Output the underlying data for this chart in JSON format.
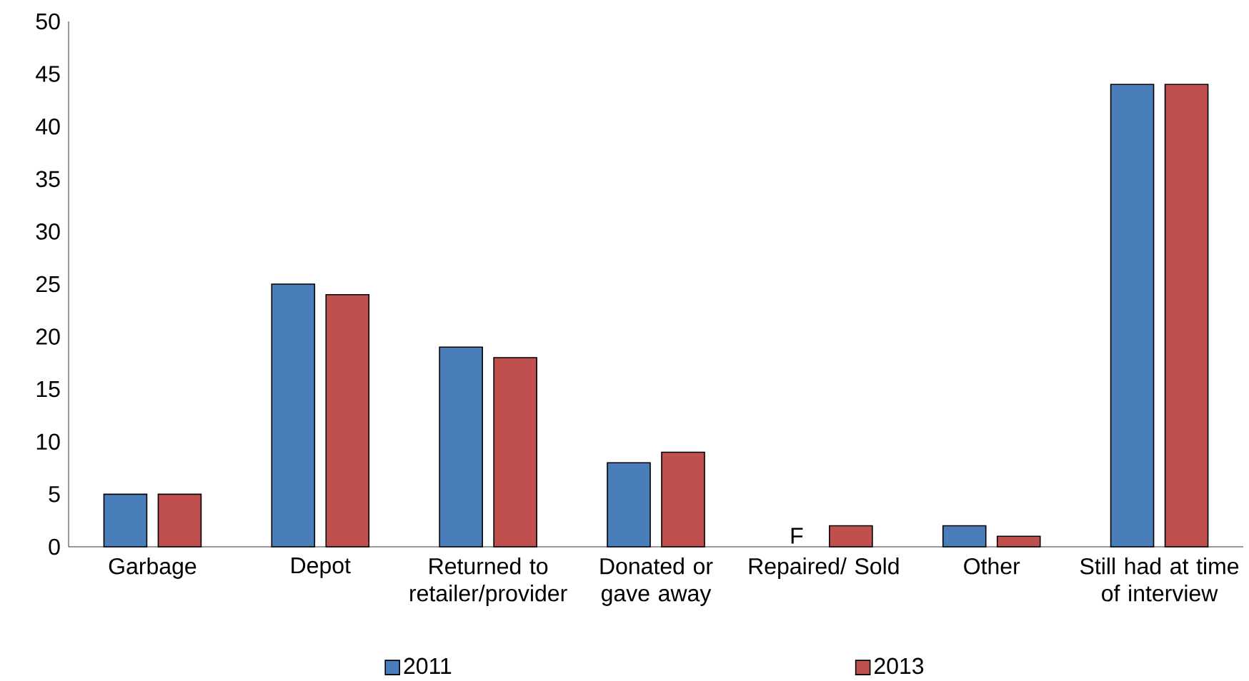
{
  "chart_data": {
    "type": "bar",
    "categories": [
      "Garbage",
      "Depot",
      "Returned to retailer/provider",
      "Donated or gave away",
      "Repaired/ Sold",
      "Other",
      "Still had at time of interview"
    ],
    "series": [
      {
        "name": "2011",
        "color": "#4a7ebb",
        "values": [
          5,
          25,
          19,
          8,
          null,
          2,
          44
        ]
      },
      {
        "name": "2013",
        "color": "#c0504d",
        "values": [
          5,
          24,
          18,
          9,
          2,
          1,
          44
        ]
      }
    ],
    "ylim": [
      0,
      50
    ],
    "yticks": [
      0,
      5,
      10,
      15,
      20,
      25,
      30,
      35,
      40,
      45,
      50
    ],
    "annotations": [
      {
        "text": "F",
        "x": "Repaired/ Sold",
        "y": 0
      }
    ],
    "grid": false,
    "legend": "bottom"
  }
}
